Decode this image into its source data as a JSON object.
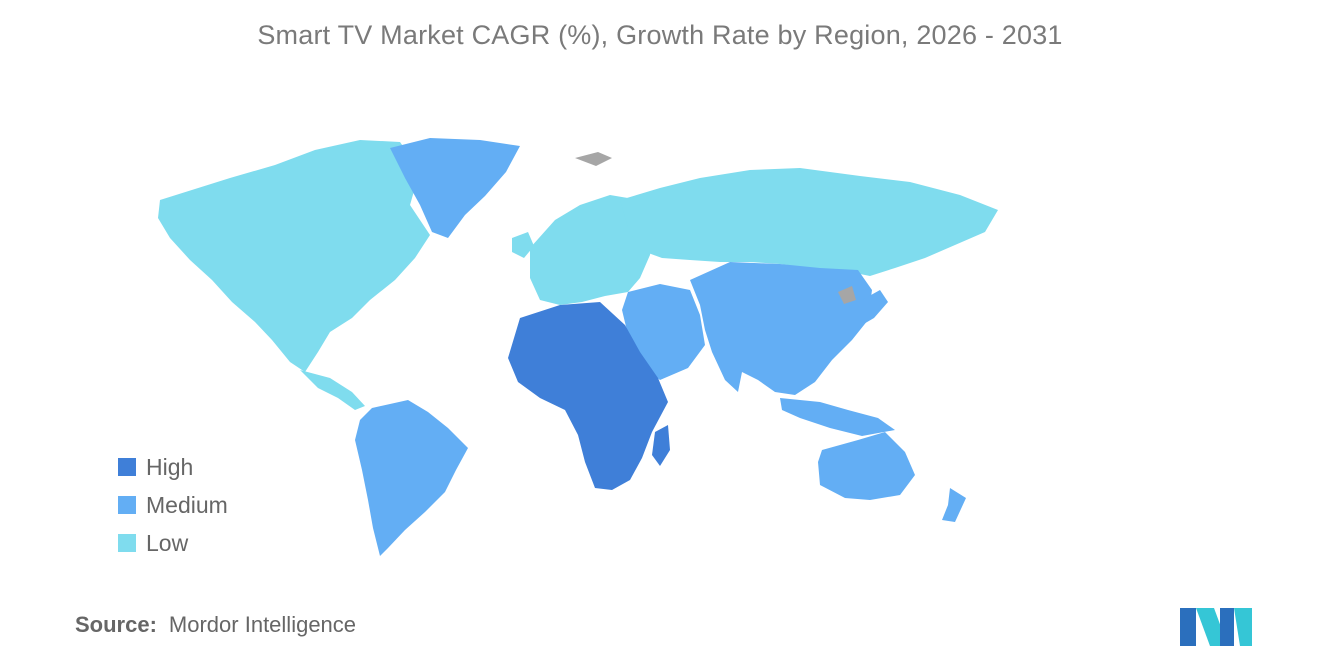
{
  "title": "Smart TV Market CAGR (%), Growth Rate by Region, 2026 - 2031",
  "legend": [
    {
      "label": "High",
      "color": "#3f7fd8"
    },
    {
      "label": "Medium",
      "color": "#63aef4"
    },
    {
      "label": "Low",
      "color": "#7fdcee"
    }
  ],
  "regions": [
    {
      "name": "North America",
      "level": "Low"
    },
    {
      "name": "Greenland",
      "level": "Medium"
    },
    {
      "name": "South America",
      "level": "Medium"
    },
    {
      "name": "Europe",
      "level": "Low"
    },
    {
      "name": "Russia",
      "level": "Low"
    },
    {
      "name": "Middle East",
      "level": "Medium"
    },
    {
      "name": "Africa",
      "level": "High"
    },
    {
      "name": "Asia-Pacific",
      "level": "Medium"
    },
    {
      "name": "Australia and New Zealand",
      "level": "Medium"
    }
  ],
  "colors": {
    "no_data": "#a6a6a6",
    "title": "#7a7a7a",
    "text": "#666666"
  },
  "source": {
    "label": "Source:",
    "value": "Mordor Intelligence"
  },
  "logo": {
    "icon": "mordor-intelligence-logo-icon",
    "colors": [
      "#2b6fbd",
      "#35c6d6"
    ]
  }
}
